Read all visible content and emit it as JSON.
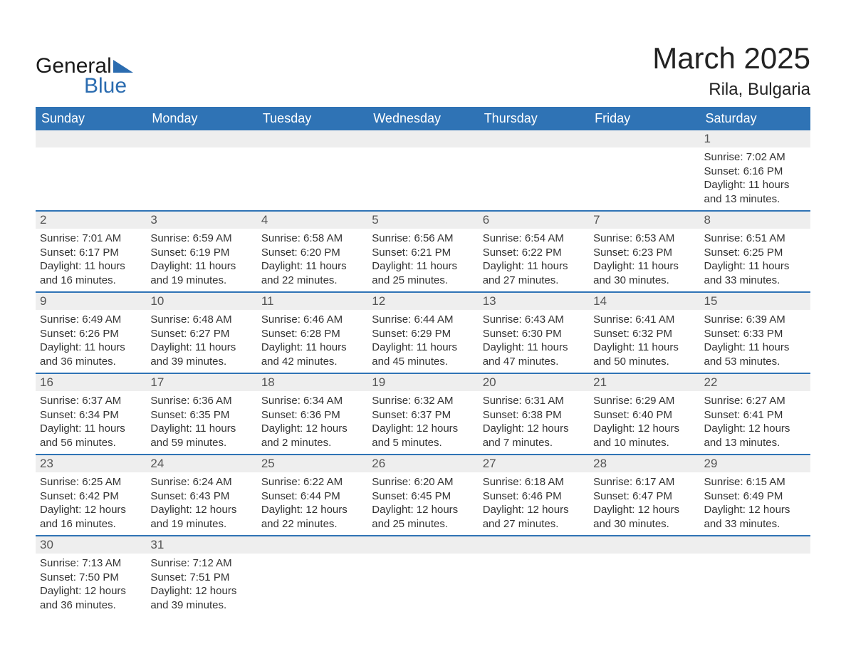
{
  "logo": {
    "word1": "General",
    "word2": "Blue"
  },
  "title": {
    "month": "March 2025",
    "location": "Rila, Bulgaria"
  },
  "colors": {
    "header_bg": "#2f73b5",
    "header_text": "#ffffff",
    "row_divider": "#2f73b5",
    "daynum_bg": "#eeeeee",
    "text": "#333333",
    "logo_blue": "#2b6cb0"
  },
  "daysOfWeek": [
    "Sunday",
    "Monday",
    "Tuesday",
    "Wednesday",
    "Thursday",
    "Friday",
    "Saturday"
  ],
  "weeks": [
    [
      null,
      null,
      null,
      null,
      null,
      null,
      {
        "n": "1",
        "sunrise": "Sunrise: 7:02 AM",
        "sunset": "Sunset: 6:16 PM",
        "daylight": "Daylight: 11 hours and 13 minutes."
      }
    ],
    [
      {
        "n": "2",
        "sunrise": "Sunrise: 7:01 AM",
        "sunset": "Sunset: 6:17 PM",
        "daylight": "Daylight: 11 hours and 16 minutes."
      },
      {
        "n": "3",
        "sunrise": "Sunrise: 6:59 AM",
        "sunset": "Sunset: 6:19 PM",
        "daylight": "Daylight: 11 hours and 19 minutes."
      },
      {
        "n": "4",
        "sunrise": "Sunrise: 6:58 AM",
        "sunset": "Sunset: 6:20 PM",
        "daylight": "Daylight: 11 hours and 22 minutes."
      },
      {
        "n": "5",
        "sunrise": "Sunrise: 6:56 AM",
        "sunset": "Sunset: 6:21 PM",
        "daylight": "Daylight: 11 hours and 25 minutes."
      },
      {
        "n": "6",
        "sunrise": "Sunrise: 6:54 AM",
        "sunset": "Sunset: 6:22 PM",
        "daylight": "Daylight: 11 hours and 27 minutes."
      },
      {
        "n": "7",
        "sunrise": "Sunrise: 6:53 AM",
        "sunset": "Sunset: 6:23 PM",
        "daylight": "Daylight: 11 hours and 30 minutes."
      },
      {
        "n": "8",
        "sunrise": "Sunrise: 6:51 AM",
        "sunset": "Sunset: 6:25 PM",
        "daylight": "Daylight: 11 hours and 33 minutes."
      }
    ],
    [
      {
        "n": "9",
        "sunrise": "Sunrise: 6:49 AM",
        "sunset": "Sunset: 6:26 PM",
        "daylight": "Daylight: 11 hours and 36 minutes."
      },
      {
        "n": "10",
        "sunrise": "Sunrise: 6:48 AM",
        "sunset": "Sunset: 6:27 PM",
        "daylight": "Daylight: 11 hours and 39 minutes."
      },
      {
        "n": "11",
        "sunrise": "Sunrise: 6:46 AM",
        "sunset": "Sunset: 6:28 PM",
        "daylight": "Daylight: 11 hours and 42 minutes."
      },
      {
        "n": "12",
        "sunrise": "Sunrise: 6:44 AM",
        "sunset": "Sunset: 6:29 PM",
        "daylight": "Daylight: 11 hours and 45 minutes."
      },
      {
        "n": "13",
        "sunrise": "Sunrise: 6:43 AM",
        "sunset": "Sunset: 6:30 PM",
        "daylight": "Daylight: 11 hours and 47 minutes."
      },
      {
        "n": "14",
        "sunrise": "Sunrise: 6:41 AM",
        "sunset": "Sunset: 6:32 PM",
        "daylight": "Daylight: 11 hours and 50 minutes."
      },
      {
        "n": "15",
        "sunrise": "Sunrise: 6:39 AM",
        "sunset": "Sunset: 6:33 PM",
        "daylight": "Daylight: 11 hours and 53 minutes."
      }
    ],
    [
      {
        "n": "16",
        "sunrise": "Sunrise: 6:37 AM",
        "sunset": "Sunset: 6:34 PM",
        "daylight": "Daylight: 11 hours and 56 minutes."
      },
      {
        "n": "17",
        "sunrise": "Sunrise: 6:36 AM",
        "sunset": "Sunset: 6:35 PM",
        "daylight": "Daylight: 11 hours and 59 minutes."
      },
      {
        "n": "18",
        "sunrise": "Sunrise: 6:34 AM",
        "sunset": "Sunset: 6:36 PM",
        "daylight": "Daylight: 12 hours and 2 minutes."
      },
      {
        "n": "19",
        "sunrise": "Sunrise: 6:32 AM",
        "sunset": "Sunset: 6:37 PM",
        "daylight": "Daylight: 12 hours and 5 minutes."
      },
      {
        "n": "20",
        "sunrise": "Sunrise: 6:31 AM",
        "sunset": "Sunset: 6:38 PM",
        "daylight": "Daylight: 12 hours and 7 minutes."
      },
      {
        "n": "21",
        "sunrise": "Sunrise: 6:29 AM",
        "sunset": "Sunset: 6:40 PM",
        "daylight": "Daylight: 12 hours and 10 minutes."
      },
      {
        "n": "22",
        "sunrise": "Sunrise: 6:27 AM",
        "sunset": "Sunset: 6:41 PM",
        "daylight": "Daylight: 12 hours and 13 minutes."
      }
    ],
    [
      {
        "n": "23",
        "sunrise": "Sunrise: 6:25 AM",
        "sunset": "Sunset: 6:42 PM",
        "daylight": "Daylight: 12 hours and 16 minutes."
      },
      {
        "n": "24",
        "sunrise": "Sunrise: 6:24 AM",
        "sunset": "Sunset: 6:43 PM",
        "daylight": "Daylight: 12 hours and 19 minutes."
      },
      {
        "n": "25",
        "sunrise": "Sunrise: 6:22 AM",
        "sunset": "Sunset: 6:44 PM",
        "daylight": "Daylight: 12 hours and 22 minutes."
      },
      {
        "n": "26",
        "sunrise": "Sunrise: 6:20 AM",
        "sunset": "Sunset: 6:45 PM",
        "daylight": "Daylight: 12 hours and 25 minutes."
      },
      {
        "n": "27",
        "sunrise": "Sunrise: 6:18 AM",
        "sunset": "Sunset: 6:46 PM",
        "daylight": "Daylight: 12 hours and 27 minutes."
      },
      {
        "n": "28",
        "sunrise": "Sunrise: 6:17 AM",
        "sunset": "Sunset: 6:47 PM",
        "daylight": "Daylight: 12 hours and 30 minutes."
      },
      {
        "n": "29",
        "sunrise": "Sunrise: 6:15 AM",
        "sunset": "Sunset: 6:49 PM",
        "daylight": "Daylight: 12 hours and 33 minutes."
      }
    ],
    [
      {
        "n": "30",
        "sunrise": "Sunrise: 7:13 AM",
        "sunset": "Sunset: 7:50 PM",
        "daylight": "Daylight: 12 hours and 36 minutes."
      },
      {
        "n": "31",
        "sunrise": "Sunrise: 7:12 AM",
        "sunset": "Sunset: 7:51 PM",
        "daylight": "Daylight: 12 hours and 39 minutes."
      },
      null,
      null,
      null,
      null,
      null
    ]
  ]
}
